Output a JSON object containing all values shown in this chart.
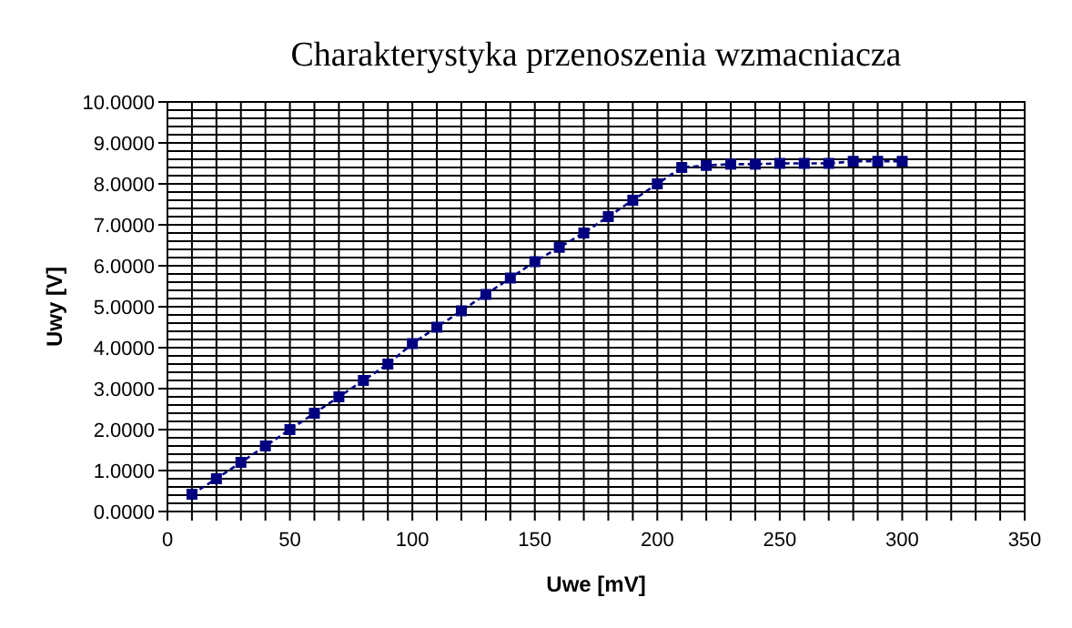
{
  "chart_data": {
    "type": "line",
    "title": "Charakterystyka przenoszenia wzmacniacza",
    "xlabel": "Uwe [mV]",
    "ylabel": "Uwy [V]",
    "x": [
      10,
      20,
      30,
      40,
      50,
      60,
      70,
      80,
      90,
      100,
      110,
      120,
      130,
      140,
      150,
      160,
      170,
      180,
      190,
      200,
      210,
      220,
      230,
      240,
      250,
      260,
      270,
      280,
      290,
      300
    ],
    "series": [
      {
        "color": "#000080",
        "values": [
          0.42,
          0.8,
          1.2,
          1.6,
          2.0,
          2.4,
          2.8,
          3.2,
          3.6,
          4.1,
          4.5,
          4.9,
          5.3,
          5.7,
          6.1,
          6.45,
          6.8,
          7.2,
          7.6,
          8.0,
          8.4,
          8.45,
          8.48,
          8.48,
          8.5,
          8.5,
          8.5,
          8.55,
          8.55,
          8.55
        ]
      }
    ],
    "xlim": [
      0,
      350
    ],
    "xticks": [
      0,
      {
        "value": 10,
        "label": null
      },
      {
        "value": 20,
        "label": null
      },
      {
        "value": 30,
        "label": null
      },
      {
        "value": 40,
        "label": null
      },
      50,
      {
        "value": 60,
        "label": null
      },
      {
        "value": 70,
        "label": null
      },
      {
        "value": 80,
        "label": null
      },
      {
        "value": 90,
        "label": null
      },
      100,
      {
        "value": 110,
        "label": null
      },
      {
        "value": 120,
        "label": null
      },
      {
        "value": 130,
        "label": null
      },
      {
        "value": 140,
        "label": null
      },
      150,
      {
        "value": 160,
        "label": null
      },
      {
        "value": 170,
        "label": null
      },
      {
        "value": 180,
        "label": null
      },
      {
        "value": 190,
        "label": null
      },
      200,
      {
        "value": 210,
        "label": null
      },
      {
        "value": 220,
        "label": null
      },
      {
        "value": 230,
        "label": null
      },
      {
        "value": 240,
        "label": null
      },
      250,
      {
        "value": 260,
        "label": null
      },
      {
        "value": 270,
        "label": null
      },
      {
        "value": 280,
        "label": null
      },
      {
        "value": 290,
        "label": null
      },
      300,
      {
        "value": 310,
        "label": null
      },
      {
        "value": 320,
        "label": null
      },
      {
        "value": 330,
        "label": null
      },
      {
        "value": 340,
        "label": null
      },
      350
    ],
    "ylim": [
      0,
      10
    ],
    "yticks": [
      {
        "value": 0,
        "label": "0.0000"
      },
      {
        "value": 1,
        "label": "1.0000"
      },
      {
        "value": 2,
        "label": "2.0000"
      },
      {
        "value": 3,
        "label": "3.0000"
      },
      {
        "value": 4,
        "label": "4.0000"
      },
      {
        "value": 5,
        "label": "5.0000"
      },
      {
        "value": 6,
        "label": "6.0000"
      },
      {
        "value": 7,
        "label": "7.0000"
      },
      {
        "value": 8,
        "label": "8.0000"
      },
      {
        "value": 9,
        "label": "9.0000"
      },
      {
        "value": 10,
        "label": "10.0000"
      }
    ],
    "grid": true,
    "marker": "square",
    "line_style": "dashed"
  }
}
